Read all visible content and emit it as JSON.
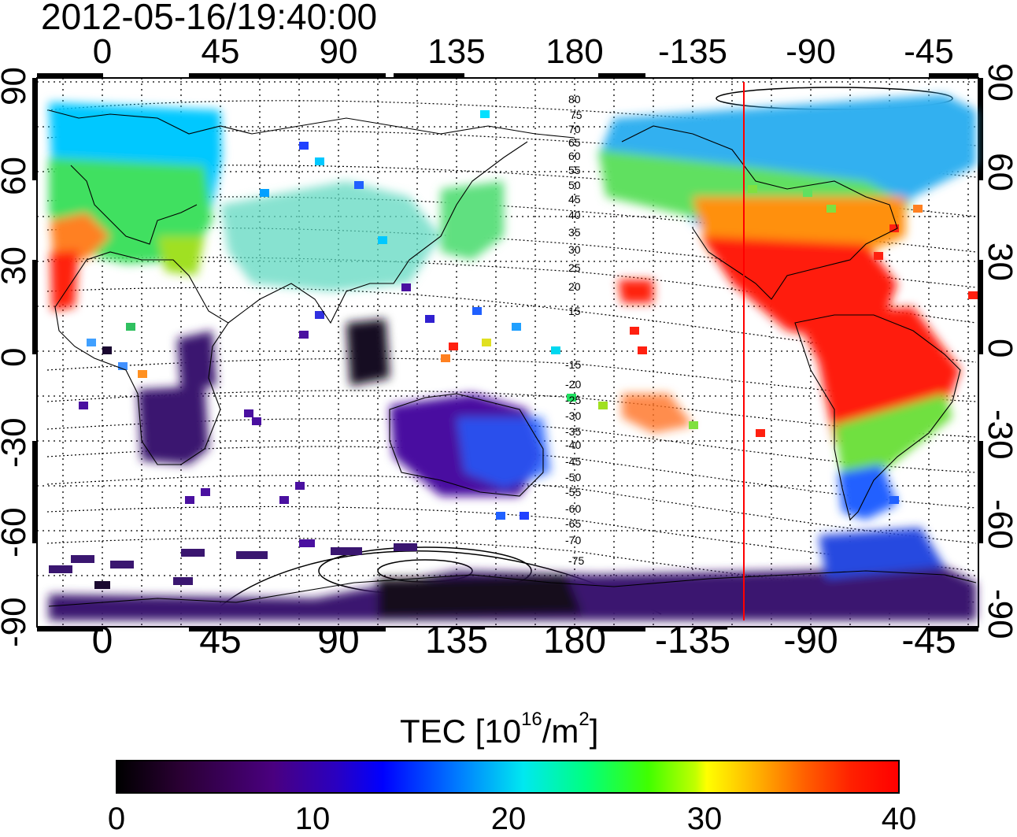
{
  "timestamp": "2012-05-16/19:40:00",
  "map": {
    "lon_ticks": [
      "0",
      "45",
      "90",
      "135",
      "180",
      "-135",
      "-90",
      "-45"
    ],
    "lat_ticks": [
      "90",
      "60",
      "30",
      "0",
      "-30",
      "-60",
      "-90"
    ],
    "contour_labels": [
      "80",
      "75",
      "70",
      "65",
      "60",
      "55",
      "50",
      "45",
      "40",
      "35",
      "30",
      "25",
      "20",
      "15",
      "-15",
      "-20",
      "-25",
      "-30",
      "-35",
      "-40",
      "-45",
      "-50",
      "-55",
      "-60",
      "-65",
      "-70",
      "-75"
    ],
    "terminator_line_color": "#ff0000"
  },
  "colorbar": {
    "title_prefix": "TEC  [10",
    "title_exp1": "16",
    "title_mid": "/m",
    "title_exp2": "2",
    "title_suffix": "]",
    "ticks": [
      "0",
      "10",
      "20",
      "30",
      "40"
    ],
    "colors": [
      "#000000",
      "#4a0080",
      "#0000ff",
      "#00e8f0",
      "#00ff00",
      "#ffff00",
      "#ff8000",
      "#ff0000"
    ]
  }
}
